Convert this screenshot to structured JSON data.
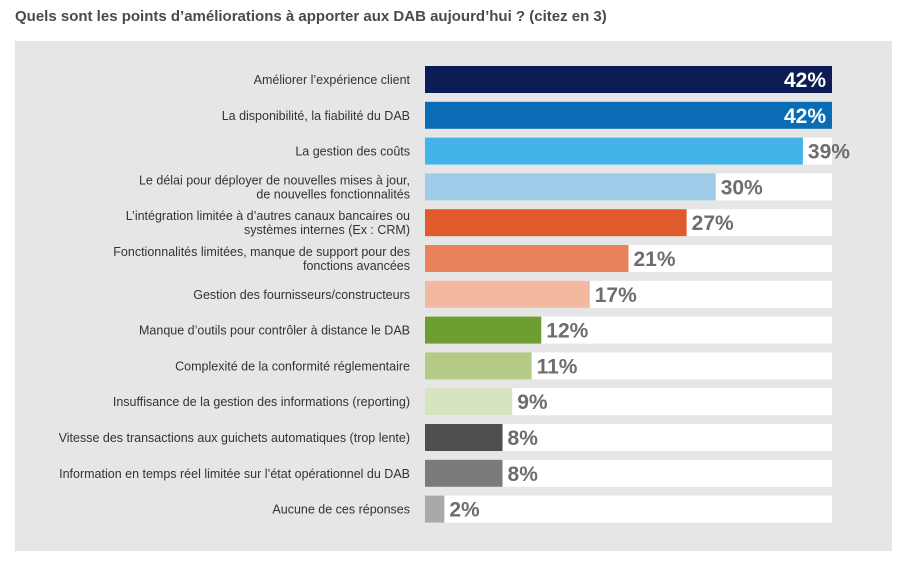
{
  "title": "Quels sont les points d’améliorations à apporter aux DAB aujourd’hui ? (citez en 3)",
  "chart_data": {
    "type": "bar",
    "orientation": "horizontal",
    "title": "Quels sont les points d’améliorations à apporter aux DAB aujourd’hui ? (citez en 3)",
    "xlabel": "",
    "ylabel": "",
    "xlim": [
      0,
      42
    ],
    "grid": false,
    "categories": [
      [
        "Améliorer l’expérience client"
      ],
      [
        "La disponibilité, la fiabilité du DAB"
      ],
      [
        "La gestion des coûts"
      ],
      [
        "Le délai pour déployer de nouvelles mises à jour,",
        "de nouvelles fonctionnalités"
      ],
      [
        "L’intégration limitée à d’autres canaux bancaires ou",
        "systèmes internes (Ex : CRM)"
      ],
      [
        "Fonctionnalités limitées, manque de support pour des",
        "fonctions avancées"
      ],
      [
        "Gestion des fournisseurs/constructeurs"
      ],
      [
        "Manque d’outils pour contrôler à distance le DAB"
      ],
      [
        "Complexité de la conformité réglementaire"
      ],
      [
        "Insuffisance de la gestion des informations (reporting)"
      ],
      [
        "Vitesse des transactions aux guichets automatiques (trop lente)"
      ],
      [
        "Information en temps réel limitée sur l’état opérationnel du DAB"
      ],
      [
        "Aucune de ces réponses"
      ]
    ],
    "values": [
      42,
      42,
      39,
      30,
      27,
      21,
      17,
      12,
      11,
      9,
      8,
      8,
      2
    ],
    "value_labels": [
      "42%",
      "42%",
      "39%",
      "30%",
      "27%",
      "21%",
      "17%",
      "12%",
      "11%",
      "9%",
      "8%",
      "8%",
      "2%"
    ],
    "colors": [
      "#0d1c54",
      "#0a6cb4",
      "#44b4e8",
      "#9ecbe8",
      "#e05a2b",
      "#e8825a",
      "#f2b8a0",
      "#6e9d30",
      "#b5ca86",
      "#d7e4c0",
      "#4f4f4f",
      "#7a7a7a",
      "#a9a9a9"
    ],
    "value_label_colors": [
      "#ffffff",
      "#ffffff",
      "#6d6d6d",
      "#6d6d6d",
      "#6d6d6d",
      "#6d6d6d",
      "#6d6d6d",
      "#6d6d6d",
      "#6d6d6d",
      "#6d6d6d",
      "#6d6d6d",
      "#6d6d6d",
      "#6d6d6d"
    ],
    "value_label_inside": [
      true,
      true,
      false,
      false,
      false,
      false,
      false,
      false,
      false,
      false,
      false,
      false,
      false
    ],
    "track_color": "#ffffff"
  }
}
